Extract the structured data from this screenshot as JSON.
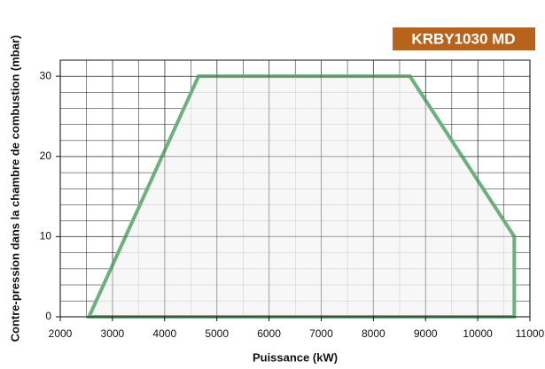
{
  "chart_data": {
    "type": "area",
    "badge": "KRBY1030 MD",
    "x_label": "Puissance (kW)",
    "y_label": "Contre-pression dans la chambre de combustion (mbar)",
    "x": [
      2550,
      4650,
      8700,
      10700,
      10700
    ],
    "values": [
      0,
      30,
      30,
      10,
      0
    ],
    "color": "#6bb07d",
    "xlim": [
      2000,
      11000
    ],
    "xticks": [
      2000,
      3000,
      4000,
      5000,
      6000,
      7000,
      8000,
      9000,
      10000,
      11000
    ],
    "ylim": [
      0,
      32
    ],
    "yticks": [
      0,
      10,
      20,
      30
    ],
    "grid": true
  }
}
